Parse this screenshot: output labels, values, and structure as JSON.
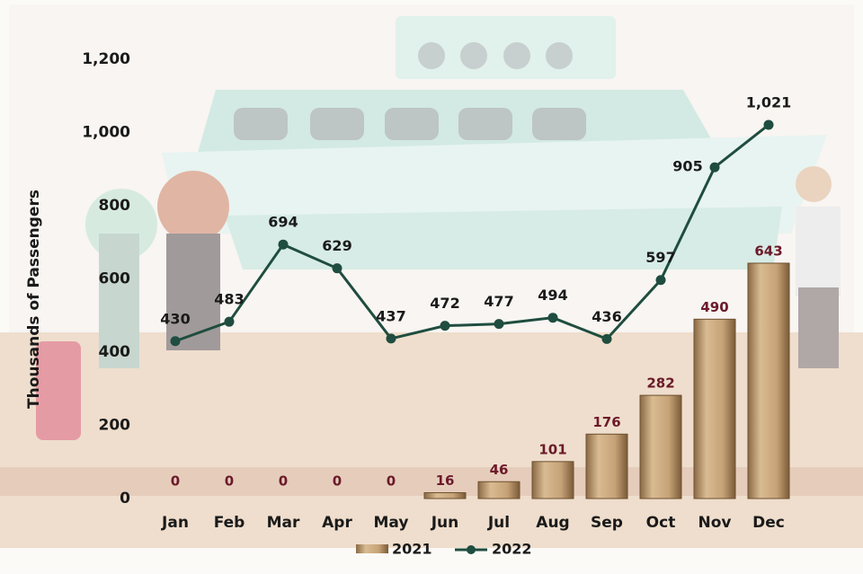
{
  "chart_data": {
    "type": "bar",
    "y_label": "Thousands of Passengers",
    "categories": [
      "Jan",
      "Feb",
      "Mar",
      "Apr",
      "May",
      "Jun",
      "Jul",
      "Aug",
      "Sep",
      "Oct",
      "Nov",
      "Dec"
    ],
    "series": [
      {
        "name": "2021",
        "type": "bar",
        "color": "#b8956a",
        "label_color": "#6b1a2a",
        "values": [
          0,
          0,
          0,
          0,
          0,
          16,
          46,
          101,
          176,
          282,
          490,
          643
        ]
      },
      {
        "name": "2022",
        "type": "line",
        "color": "#1f4d3f",
        "label_color": "#1a1a1a",
        "values": [
          430,
          483,
          694,
          629,
          437,
          472,
          477,
          494,
          436,
          597,
          905,
          1021
        ],
        "value_labels": [
          "430",
          "483",
          "694",
          "629",
          "437",
          "472",
          "477",
          "494",
          "436",
          "597",
          "905",
          "1,021"
        ]
      }
    ],
    "ylim": [
      0,
      1200
    ],
    "yticks": [
      0,
      200,
      400,
      600,
      800,
      {
        "value": 1000,
        "label": "1,000"
      },
      {
        "value": 1200,
        "label": "1,200"
      }
    ],
    "grid": false
  }
}
